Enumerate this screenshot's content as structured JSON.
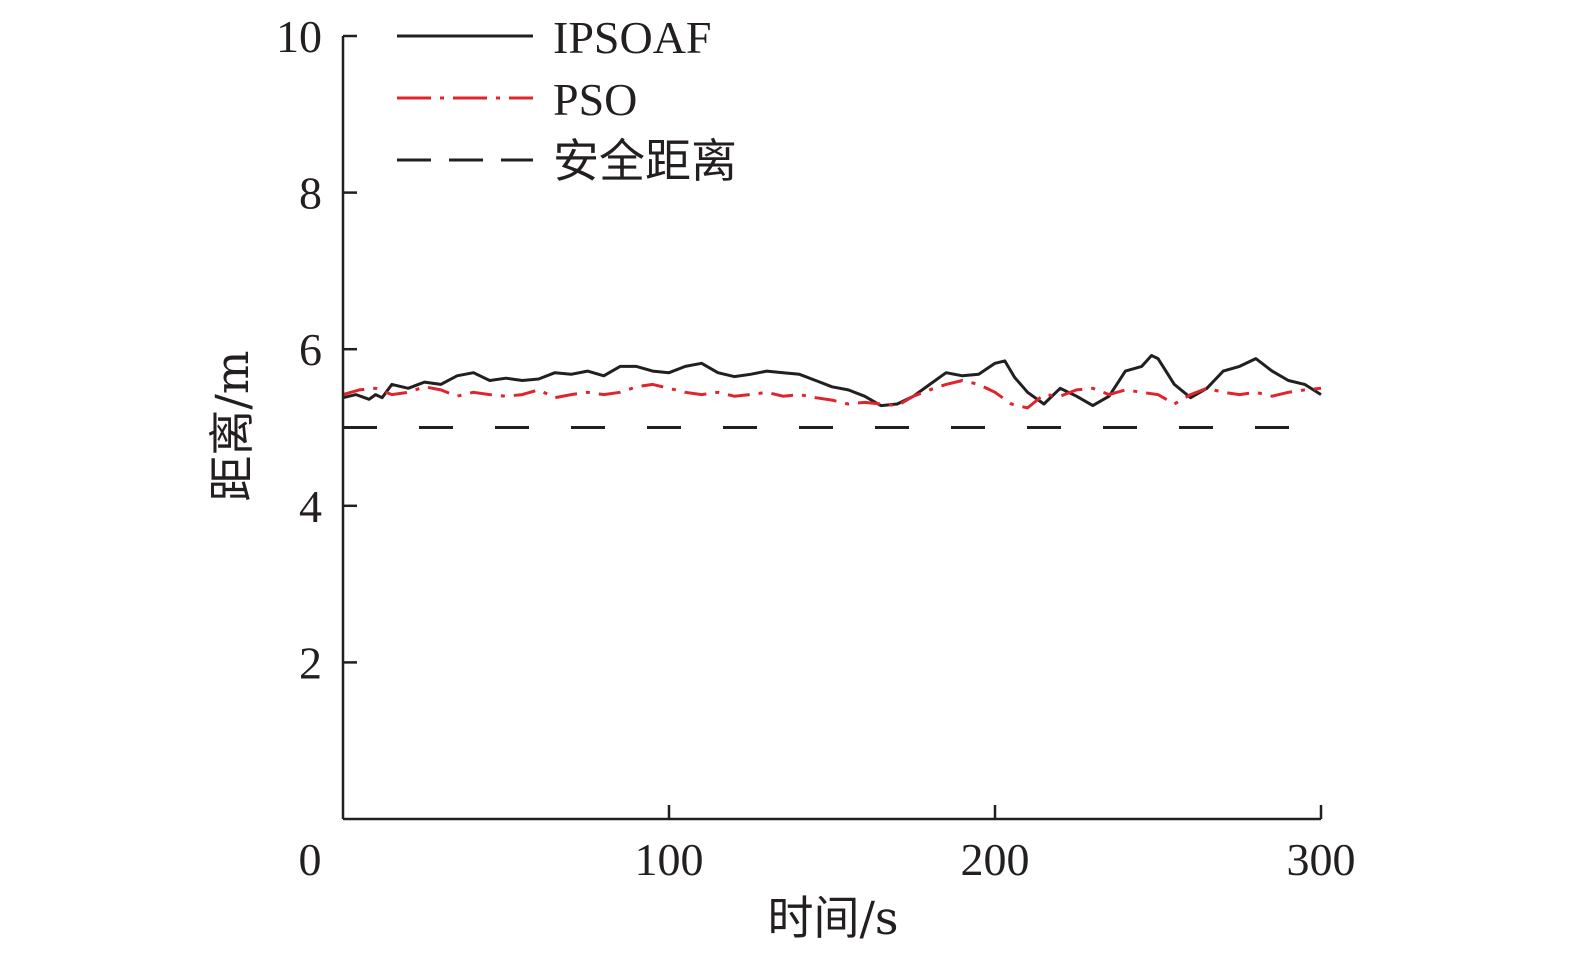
{
  "chart_data": {
    "type": "line",
    "xlabel": "时间/s",
    "ylabel": "距离/m",
    "xlim": [
      0,
      300
    ],
    "ylim": [
      0,
      10
    ],
    "xticks": [
      "0",
      "100",
      "200",
      "300"
    ],
    "yticks": [
      "2",
      "4",
      "6",
      "8",
      "10"
    ],
    "grid": false,
    "legend_position": "top-left",
    "series": [
      {
        "name": "IPSOAF",
        "color": "#231f20",
        "style": "solid",
        "x": [
          0,
          4,
          8,
          10,
          12,
          15,
          20,
          25,
          30,
          35,
          40,
          45,
          50,
          55,
          60,
          65,
          70,
          75,
          80,
          85,
          90,
          95,
          100,
          105,
          110,
          115,
          120,
          125,
          130,
          135,
          140,
          145,
          150,
          155,
          160,
          165,
          170,
          175,
          180,
          185,
          190,
          195,
          200,
          203,
          206,
          210,
          215,
          220,
          225,
          230,
          235,
          240,
          245,
          248,
          250,
          255,
          260,
          265,
          270,
          275,
          280,
          285,
          290,
          295,
          300
        ],
        "y": [
          5.38,
          5.42,
          5.36,
          5.42,
          5.38,
          5.55,
          5.5,
          5.58,
          5.55,
          5.66,
          5.7,
          5.6,
          5.63,
          5.6,
          5.62,
          5.7,
          5.68,
          5.72,
          5.66,
          5.78,
          5.78,
          5.72,
          5.7,
          5.78,
          5.82,
          5.7,
          5.65,
          5.68,
          5.72,
          5.7,
          5.68,
          5.6,
          5.52,
          5.48,
          5.4,
          5.28,
          5.3,
          5.4,
          5.55,
          5.7,
          5.66,
          5.68,
          5.82,
          5.85,
          5.64,
          5.45,
          5.3,
          5.5,
          5.4,
          5.28,
          5.4,
          5.72,
          5.78,
          5.92,
          5.88,
          5.55,
          5.38,
          5.5,
          5.72,
          5.78,
          5.88,
          5.72,
          5.6,
          5.55,
          5.42
        ]
      },
      {
        "name": "PSO",
        "color": "#e0242c",
        "style": "dashdot",
        "x": [
          0,
          5,
          10,
          15,
          20,
          25,
          30,
          35,
          40,
          45,
          50,
          55,
          60,
          65,
          70,
          75,
          80,
          85,
          90,
          95,
          100,
          105,
          110,
          115,
          120,
          125,
          130,
          135,
          140,
          145,
          150,
          155,
          160,
          165,
          170,
          175,
          180,
          185,
          190,
          195,
          200,
          205,
          210,
          215,
          220,
          225,
          230,
          235,
          240,
          245,
          250,
          255,
          260,
          265,
          270,
          275,
          280,
          285,
          290,
          295,
          300
        ],
        "y": [
          5.42,
          5.48,
          5.5,
          5.42,
          5.45,
          5.52,
          5.48,
          5.4,
          5.45,
          5.42,
          5.4,
          5.42,
          5.48,
          5.38,
          5.42,
          5.45,
          5.42,
          5.45,
          5.52,
          5.55,
          5.5,
          5.45,
          5.42,
          5.45,
          5.4,
          5.42,
          5.45,
          5.4,
          5.42,
          5.38,
          5.35,
          5.3,
          5.32,
          5.3,
          5.28,
          5.4,
          5.48,
          5.55,
          5.6,
          5.55,
          5.45,
          5.3,
          5.25,
          5.42,
          5.4,
          5.48,
          5.5,
          5.42,
          5.48,
          5.45,
          5.42,
          5.3,
          5.42,
          5.5,
          5.45,
          5.42,
          5.45,
          5.4,
          5.45,
          5.48,
          5.5
        ]
      },
      {
        "name": "安全距离",
        "color": "#231f20",
        "style": "dashed",
        "x": [
          0,
          292
        ],
        "y": [
          5,
          5
        ]
      }
    ]
  }
}
